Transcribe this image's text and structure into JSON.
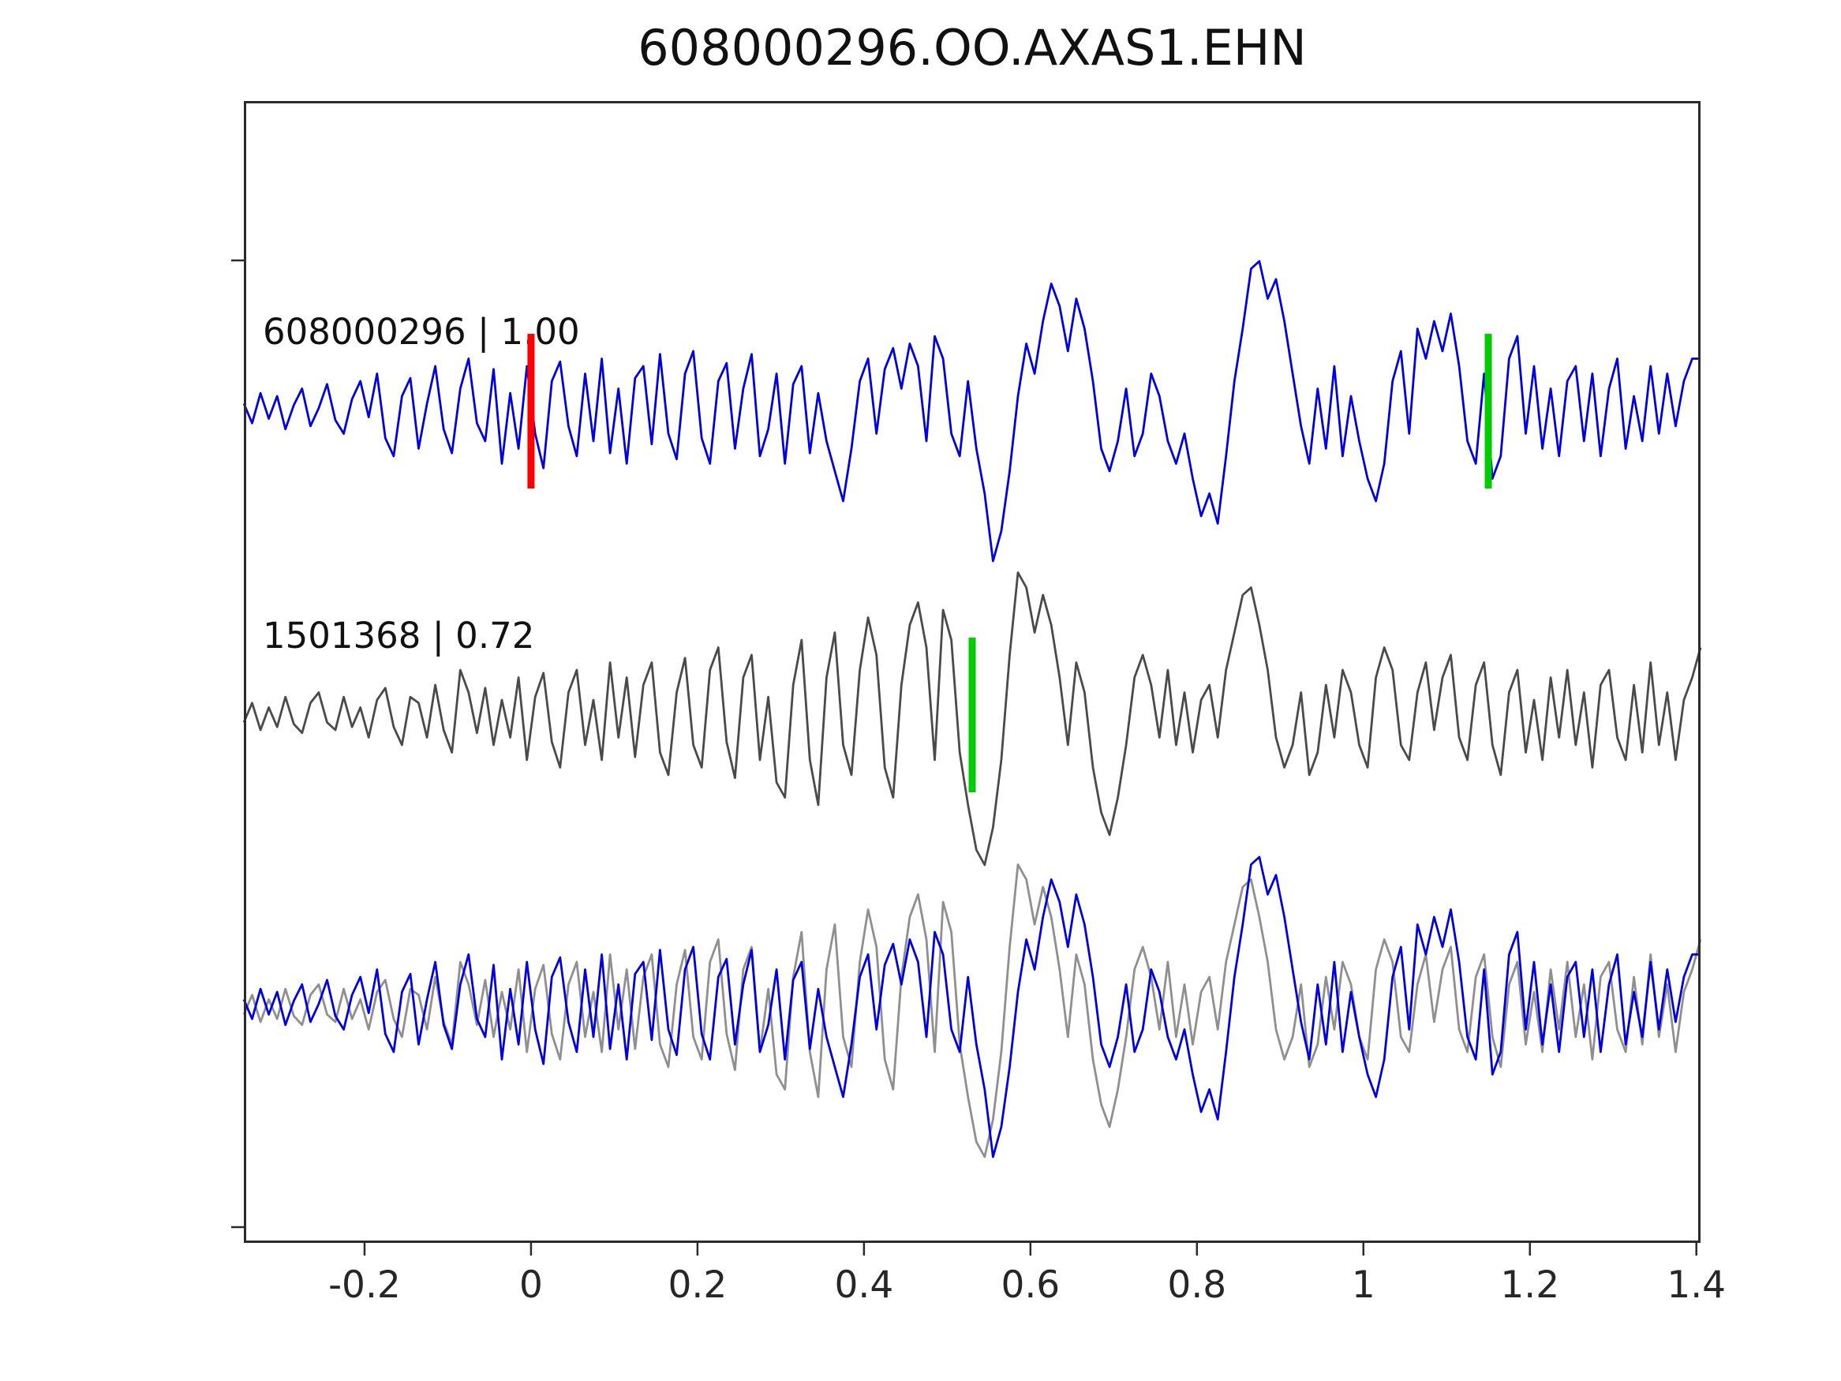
{
  "chart_data": {
    "type": "line",
    "title": "608000296.OO.AXAS1.EHN",
    "xlabel": "",
    "ylabel": "",
    "grid": false,
    "legend": "none",
    "x_start": -0.345,
    "dx": 0.01,
    "x_range": [
      -0.345,
      1.405
    ],
    "x_tick_values": [
      -0.2,
      0,
      0.2,
      0.4,
      0.6,
      0.8,
      1,
      1.2,
      1.4
    ],
    "x_ticks": [
      "-0.2",
      "0",
      "0.2",
      "0.4",
      "0.6",
      "0.8",
      "1",
      "1.2",
      "1.4"
    ],
    "colors": {
      "template_trace": "#0000e0",
      "matched_trace": "#4a4a4a",
      "overlay_gray": "#8f8f8f",
      "pick_red": "#ff0000",
      "pick_green": "#00cc00",
      "axis": "#2b2b2b"
    },
    "series": [
      {
        "name": "608000296",
        "color": "#0000e0",
        "values": [
          0.05,
          -0.08,
          0.12,
          -0.05,
          0.1,
          -0.12,
          0.04,
          0.15,
          -0.1,
          0.02,
          0.18,
          -0.06,
          -0.15,
          0.08,
          0.2,
          -0.04,
          0.25,
          -0.18,
          -0.3,
          0.1,
          0.22,
          -0.25,
          0.05,
          0.3,
          -0.12,
          -0.28,
          0.15,
          0.35,
          -0.08,
          -0.2,
          0.28,
          -0.35,
          0.12,
          -0.25,
          0.3,
          -0.15,
          -0.38,
          0.2,
          0.33,
          -0.1,
          -0.3,
          0.25,
          -0.2,
          0.35,
          -0.28,
          0.15,
          -0.35,
          0.22,
          0.3,
          -0.22,
          0.38,
          -0.15,
          -0.32,
          0.25,
          0.4,
          -0.18,
          -0.35,
          0.2,
          0.32,
          -0.25,
          0.15,
          0.38,
          -0.3,
          -0.12,
          0.25,
          -0.35,
          0.18,
          0.3,
          -0.28,
          0.12,
          -0.2,
          -0.4,
          -0.6,
          -0.25,
          0.2,
          0.35,
          -0.15,
          0.28,
          0.42,
          0.15,
          0.45,
          0.3,
          -0.2,
          0.5,
          0.35,
          -0.15,
          -0.3,
          0.2,
          -0.25,
          -0.55,
          -1.0,
          -0.8,
          -0.4,
          0.1,
          0.45,
          0.25,
          0.6,
          0.85,
          0.7,
          0.4,
          0.75,
          0.55,
          0.2,
          -0.25,
          -0.4,
          -0.2,
          0.15,
          -0.3,
          -0.15,
          0.25,
          0.1,
          -0.2,
          -0.35,
          -0.15,
          -0.45,
          -0.7,
          -0.55,
          -0.75,
          -0.3,
          0.2,
          0.55,
          0.95,
          1.0,
          0.75,
          0.88,
          0.6,
          0.25,
          -0.1,
          -0.35,
          0.15,
          -0.25,
          0.3,
          -0.3,
          0.1,
          -0.2,
          -0.45,
          -0.6,
          -0.35,
          0.2,
          0.4,
          -0.15,
          0.55,
          0.35,
          0.6,
          0.4,
          0.65,
          0.3,
          -0.2,
          -0.35,
          0.25,
          -0.45,
          -0.3,
          0.35,
          0.5,
          -0.15,
          0.3,
          -0.25,
          0.15,
          -0.3,
          0.2,
          0.3,
          -0.2,
          0.25,
          -0.3,
          0.15,
          0.35,
          -0.25,
          0.1,
          -0.2,
          0.3,
          -0.15,
          0.25,
          -0.1,
          0.2,
          0.35,
          0.35
        ]
      },
      {
        "name": "1501368",
        "color": "#4a4a4a",
        "values": [
          -0.05,
          0.08,
          -0.1,
          0.05,
          -0.08,
          0.12,
          -0.06,
          -0.12,
          0.08,
          0.15,
          -0.05,
          -0.1,
          0.12,
          -0.08,
          0.05,
          -0.15,
          0.1,
          0.18,
          -0.08,
          -0.2,
          0.12,
          0.08,
          -0.15,
          0.2,
          -0.1,
          -0.25,
          0.3,
          0.15,
          -0.12,
          0.18,
          -0.2,
          0.1,
          -0.15,
          0.25,
          -0.3,
          0.12,
          0.28,
          -0.18,
          -0.35,
          0.15,
          0.3,
          -0.2,
          0.1,
          -0.3,
          0.35,
          -0.15,
          0.25,
          -0.28,
          0.2,
          0.35,
          -0.25,
          -0.4,
          0.15,
          0.38,
          -0.2,
          -0.35,
          0.3,
          0.45,
          -0.18,
          -0.42,
          0.25,
          0.4,
          -0.3,
          0.12,
          -0.45,
          -0.55,
          0.2,
          0.5,
          -0.3,
          -0.6,
          0.25,
          0.55,
          -0.2,
          -0.4,
          0.3,
          0.65,
          0.4,
          -0.35,
          -0.55,
          0.2,
          0.6,
          0.75,
          0.45,
          -0.3,
          0.7,
          0.5,
          -0.25,
          -0.6,
          -0.9,
          -1.0,
          -0.75,
          -0.3,
          0.4,
          0.95,
          0.85,
          0.55,
          0.8,
          0.6,
          0.25,
          -0.2,
          0.35,
          0.15,
          -0.35,
          -0.65,
          -0.8,
          -0.55,
          -0.2,
          0.25,
          0.4,
          0.2,
          -0.15,
          0.3,
          -0.2,
          0.15,
          -0.25,
          0.1,
          0.2,
          -0.15,
          0.3,
          0.55,
          0.8,
          0.85,
          0.6,
          0.3,
          -0.15,
          -0.35,
          -0.2,
          0.15,
          -0.4,
          -0.25,
          0.2,
          -0.15,
          0.3,
          0.15,
          -0.2,
          -0.35,
          0.25,
          0.45,
          0.3,
          -0.2,
          -0.3,
          0.15,
          0.35,
          -0.1,
          0.25,
          0.4,
          -0.15,
          -0.3,
          0.2,
          0.35,
          -0.2,
          -0.4,
          0.15,
          0.3,
          -0.25,
          0.1,
          -0.3,
          0.25,
          -0.15,
          0.3,
          -0.2,
          0.15,
          -0.35,
          0.2,
          0.3,
          -0.15,
          -0.3,
          0.2,
          -0.25,
          0.35,
          -0.2,
          0.15,
          -0.3,
          0.1,
          0.25,
          0.45
        ]
      }
    ],
    "panels": [
      {
        "label": "608000296 | 1.00",
        "series": [
          "608000296"
        ],
        "picks": [
          {
            "x": 0.0,
            "color": "#ff0000"
          },
          {
            "x": 1.15,
            "color": "#00cc00"
          }
        ]
      },
      {
        "label": "1501368 | 0.72",
        "series": [
          "1501368"
        ],
        "picks": [
          {
            "x": 0.53,
            "color": "#00cc00"
          }
        ]
      },
      {
        "label": "",
        "series": [
          "1501368",
          "608000296"
        ],
        "overlay_colors": [
          "#8f8f8f",
          "#0000e0"
        ],
        "picks": []
      }
    ]
  }
}
